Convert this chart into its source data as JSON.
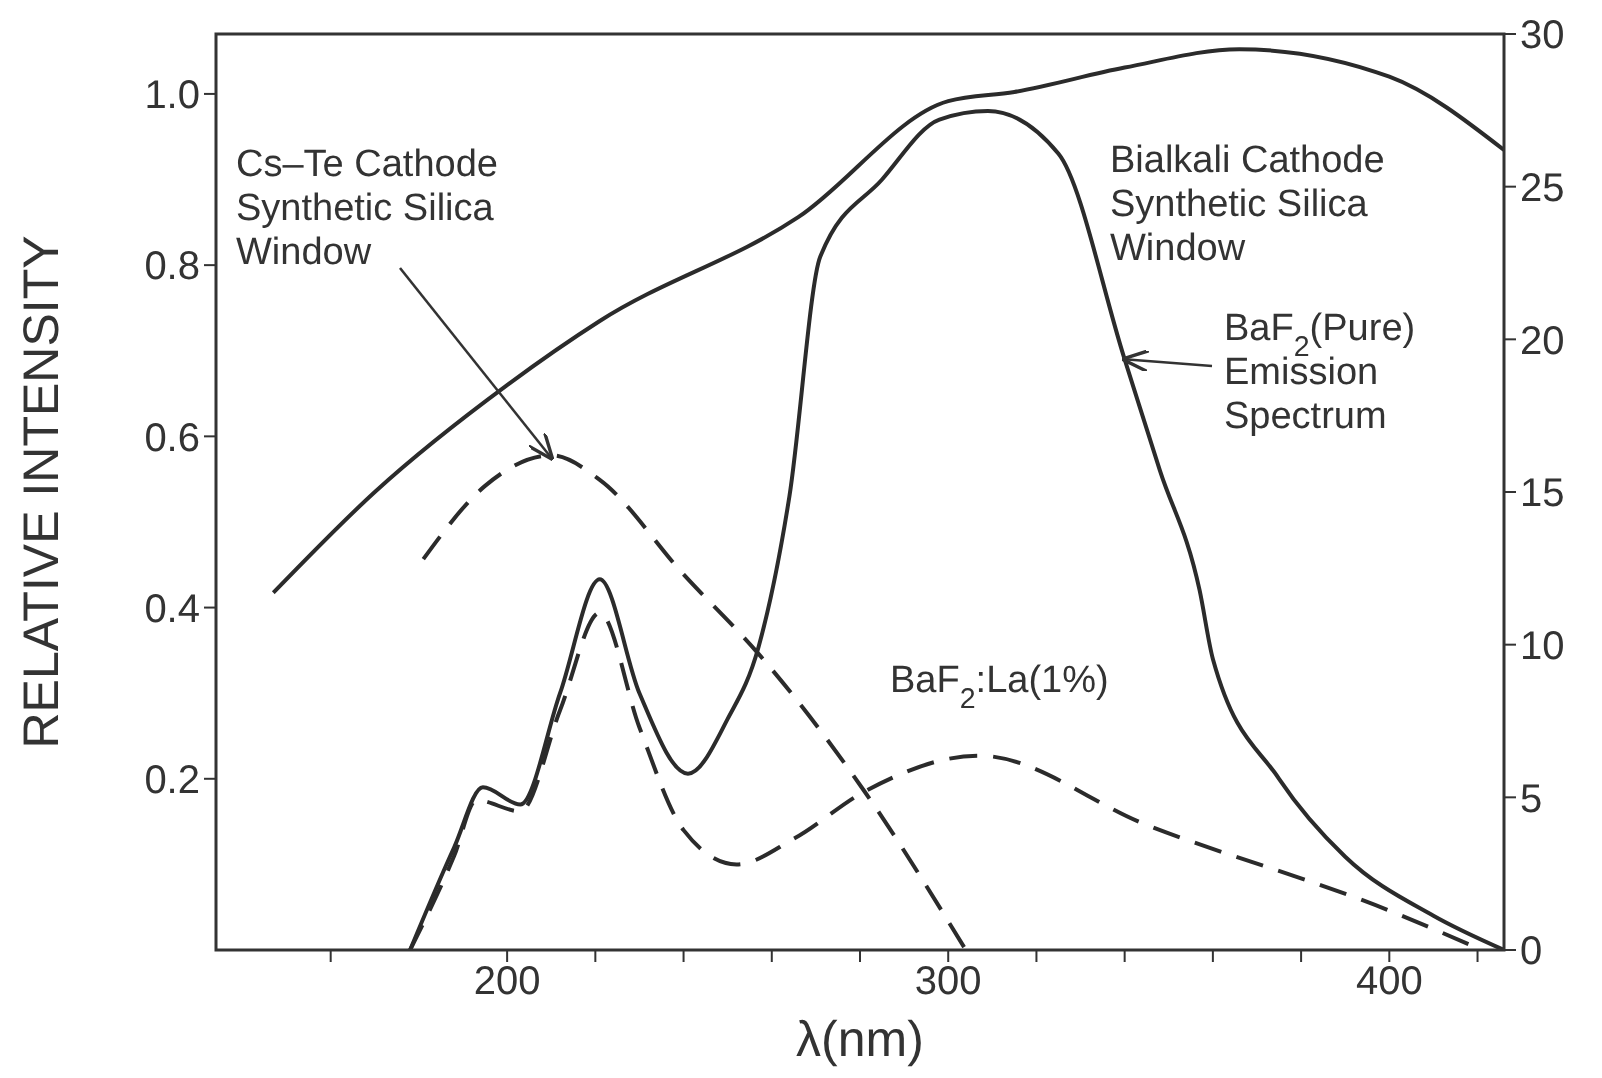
{
  "chart_data": {
    "type": "line",
    "xlabel": "λ(nm)",
    "ylabel": "RELATIVE INTENSITY",
    "xlim": [
      134,
      426
    ],
    "xticks": [
      {
        "value": 160,
        "label": null
      },
      {
        "value": 200,
        "label": "200"
      },
      {
        "value": 220,
        "label": null
      },
      {
        "value": 240,
        "label": null
      },
      {
        "value": 260,
        "label": null
      },
      {
        "value": 280,
        "label": null
      },
      {
        "value": 300,
        "label": "300"
      },
      {
        "value": 320,
        "label": null
      },
      {
        "value": 340,
        "label": null
      },
      {
        "value": 360,
        "label": null
      },
      {
        "value": 380,
        "label": null
      },
      {
        "value": 400,
        "label": "400"
      },
      {
        "value": 420,
        "label": null
      }
    ],
    "ylim": [
      0,
      1.07
    ],
    "yticks": [
      0.2,
      0.4,
      0.6,
      0.8,
      {
        "value": 1,
        "label": "1.0"
      }
    ],
    "y2lim": [
      0,
      30
    ],
    "y2ticks": [
      0,
      5,
      10,
      15,
      20,
      25,
      30
    ],
    "marker": "none",
    "series": [
      {
        "color": "#2b2b2b",
        "axis": "y2",
        "line_style": "solid",
        "x": [
          147,
          170,
          200,
          221,
          266,
          300,
          315,
          340,
          366,
          400,
          426
        ],
        "values": [
          11.7,
          15.0,
          18.5,
          20.6,
          24.0,
          27.8,
          28.1,
          28.9,
          29.5,
          28.6,
          26.2
        ]
      },
      {
        "color": "#2b2b2b",
        "axis": "y2",
        "line_style": "dashed",
        "x": [
          181,
          195,
          210,
          221,
          240,
          257,
          281,
          304
        ],
        "values": [
          12.8,
          15.2,
          16.2,
          15.4,
          12.3,
          9.7,
          5.2,
          0
        ]
      },
      {
        "color": "#2b2b2b",
        "axis": "y",
        "line_style": "solid",
        "x": [
          178,
          188,
          194.5,
          203,
          212,
          221,
          230,
          241,
          250,
          257,
          264,
          271,
          285,
          298,
          309,
          325,
          340,
          348,
          357,
          360,
          375,
          390,
          410,
          426
        ],
        "values": [
          0,
          0.12,
          0.19,
          0.17,
          0.3,
          0.433,
          0.3,
          0.206,
          0.27,
          0.354,
          0.53,
          0.81,
          0.9,
          0.97,
          0.98,
          0.93,
          0.69,
          0.56,
          0.42,
          0.34,
          0.2,
          0.109,
          0.04,
          0
        ]
      },
      {
        "color": "#2b2b2b",
        "axis": "y",
        "line_style": "dashed",
        "x": [
          178,
          188,
          193,
          203,
          212,
          221,
          230,
          240,
          252,
          265,
          281,
          307,
          345,
          400,
          421
        ],
        "values": [
          0,
          0.11,
          0.175,
          0.162,
          0.28,
          0.394,
          0.26,
          0.14,
          0.1,
          0.13,
          0.185,
          0.227,
          0.146,
          0.046,
          0
        ]
      }
    ],
    "annotations": [
      {
        "text": "Cs–Te Cathode\nSynthetic Silica\nWindow",
        "x": 210,
        "y": 0.575
      },
      "Bialkali Cathode\nSynthetic Silica\nWindow",
      {
        "text": "BaF$_{2}$(Pure)\nEmission\nSpectrum",
        "x": 340,
        "y": 0.69
      },
      "BaF$_{2}$:La(1%)"
    ]
  }
}
